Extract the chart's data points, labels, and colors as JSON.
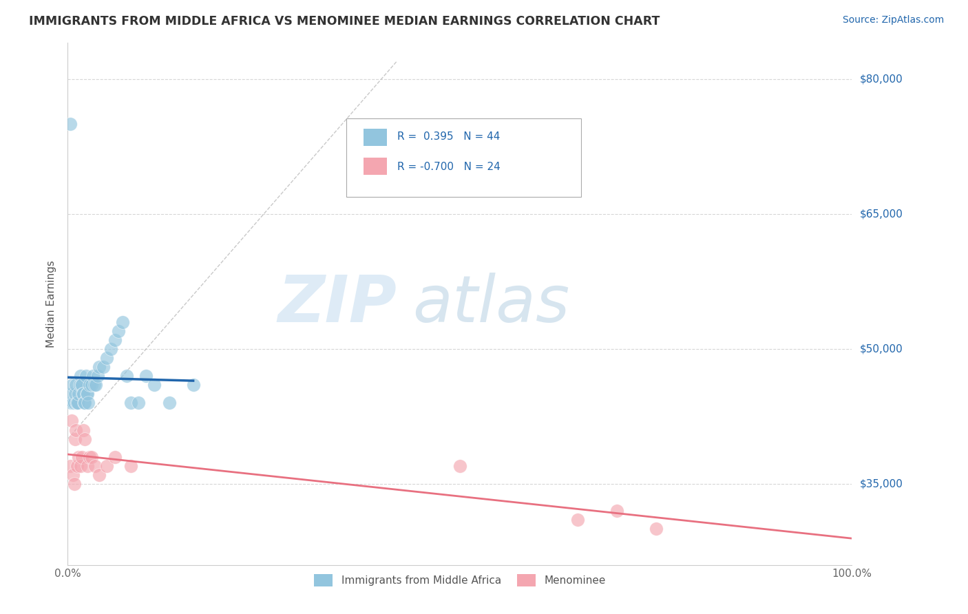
{
  "title": "IMMIGRANTS FROM MIDDLE AFRICA VS MENOMINEE MEDIAN EARNINGS CORRELATION CHART",
  "source": "Source: ZipAtlas.com",
  "ylabel": "Median Earnings",
  "xlim": [
    0.0,
    1.0
  ],
  "ylim": [
    26000,
    84000
  ],
  "x_ticks": [
    0.0,
    0.2,
    0.4,
    0.6,
    0.8,
    1.0
  ],
  "x_tick_labels": [
    "0.0%",
    "",
    "",
    "",
    "",
    "100.0%"
  ],
  "y_ticks": [
    35000,
    50000,
    65000,
    80000
  ],
  "y_tick_labels": [
    "$35,000",
    "$50,000",
    "$65,000",
    "$80,000"
  ],
  "blue_R": "0.395",
  "blue_N": "44",
  "pink_R": "-0.700",
  "pink_N": "24",
  "blue_color": "#92c5de",
  "pink_color": "#f4a6b0",
  "blue_line_color": "#2166ac",
  "pink_line_color": "#e87080",
  "legend_label_blue": "Immigrants from Middle Africa",
  "legend_label_pink": "Menominee",
  "background_color": "#ffffff",
  "grid_color": "#cccccc",
  "title_color": "#333333",
  "source_color": "#2166ac",
  "blue_scatter_x": [
    0.003,
    0.004,
    0.005,
    0.006,
    0.007,
    0.008,
    0.009,
    0.01,
    0.011,
    0.012,
    0.013,
    0.014,
    0.015,
    0.016,
    0.017,
    0.018,
    0.019,
    0.02,
    0.021,
    0.022,
    0.023,
    0.024,
    0.025,
    0.026,
    0.028,
    0.03,
    0.032,
    0.034,
    0.036,
    0.038,
    0.04,
    0.045,
    0.05,
    0.055,
    0.06,
    0.065,
    0.07,
    0.075,
    0.08,
    0.09,
    0.1,
    0.11,
    0.13,
    0.16
  ],
  "blue_scatter_y": [
    75000,
    44000,
    45000,
    46000,
    44000,
    44000,
    45000,
    46000,
    44000,
    44000,
    44000,
    45000,
    46000,
    47000,
    46000,
    46000,
    45000,
    45000,
    44000,
    44000,
    47000,
    45000,
    45000,
    44000,
    46000,
    46000,
    47000,
    46000,
    46000,
    47000,
    48000,
    48000,
    49000,
    50000,
    51000,
    52000,
    53000,
    47000,
    44000,
    44000,
    47000,
    46000,
    44000,
    46000
  ],
  "pink_scatter_x": [
    0.003,
    0.005,
    0.007,
    0.008,
    0.009,
    0.01,
    0.012,
    0.014,
    0.016,
    0.018,
    0.02,
    0.022,
    0.025,
    0.028,
    0.03,
    0.035,
    0.04,
    0.05,
    0.06,
    0.08,
    0.5,
    0.65,
    0.7,
    0.75
  ],
  "pink_scatter_y": [
    37000,
    42000,
    36000,
    35000,
    40000,
    41000,
    37000,
    38000,
    37000,
    38000,
    41000,
    40000,
    37000,
    38000,
    38000,
    37000,
    36000,
    37000,
    38000,
    37000,
    37000,
    31000,
    32000,
    30000
  ]
}
